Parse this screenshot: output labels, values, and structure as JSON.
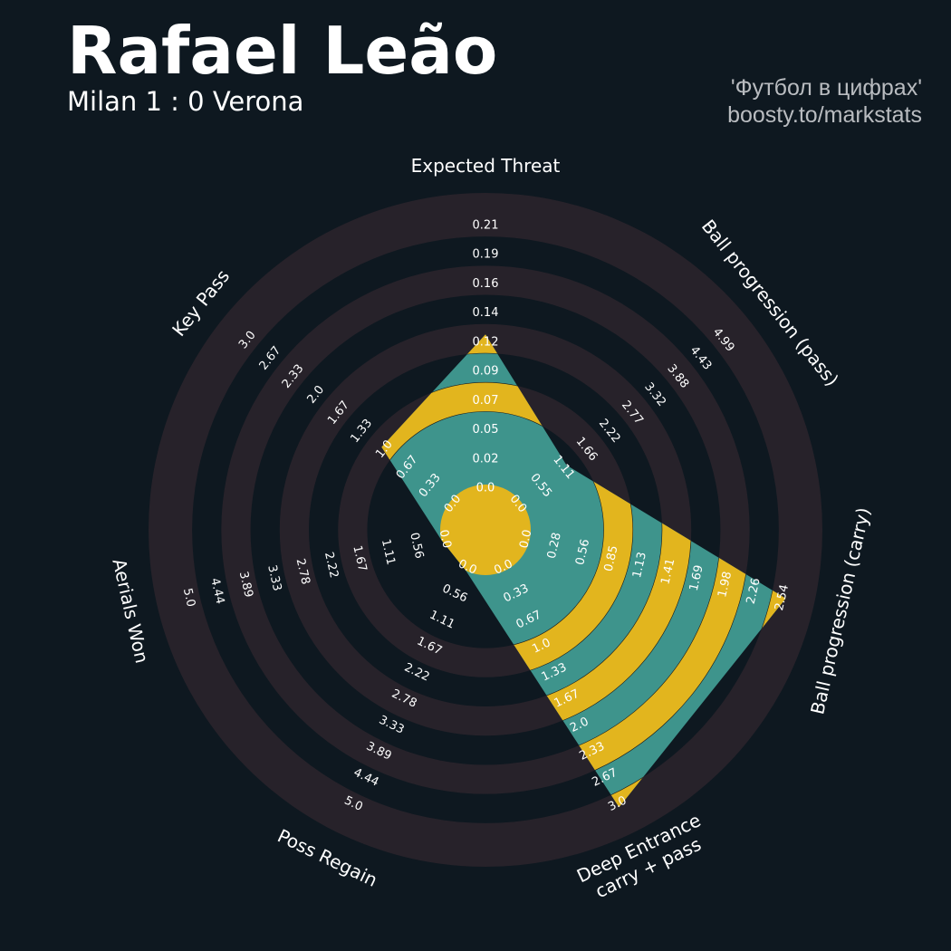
{
  "header": {
    "title": "Rafael Leão",
    "subtitle": "Milan 1 : 0 Verona",
    "credit_line1": "'Футбол в цифрах'",
    "credit_line2": "boosty.to/markstats"
  },
  "colors": {
    "background": "#0e1820",
    "ring_band": "#27222a",
    "fill_teal": "#3e948c",
    "fill_yellow": "#e2b51e",
    "text": "#ffffff",
    "credit_text": "#b9bcc0"
  },
  "chart_data": {
    "type": "radar",
    "title": "Rafael Leão",
    "grid": true,
    "params": [
      {
        "label": "Expected Threat",
        "value": 0.12,
        "min": 0.0,
        "max": 0.21,
        "ticks": [
          "0.0",
          "0.02",
          "0.05",
          "0.07",
          "0.09",
          "0.12",
          "0.14",
          "0.16",
          "0.19",
          "0.21"
        ]
      },
      {
        "label": "Ball progression (pass)",
        "value": 1.11,
        "min": 0.0,
        "max": 4.99,
        "ticks": [
          "0.0",
          "0.55",
          "1.11",
          "1.66",
          "2.22",
          "2.77",
          "3.32",
          "3.88",
          "4.43",
          "4.99"
        ]
      },
      {
        "label": "Ball progression (carry)",
        "value": 2.54,
        "min": 0.0,
        "max": 2.54,
        "ticks": [
          "0.0",
          "0.28",
          "0.56",
          "0.85",
          "1.13",
          "1.41",
          "1.69",
          "1.98",
          "2.26",
          "2.54"
        ]
      },
      {
        "label": "Deep Entrance\ncarry + pass",
        "value": 3.0,
        "min": 0.0,
        "max": 3.0,
        "ticks": [
          "0.0",
          "0.33",
          "0.67",
          "1.0",
          "1.33",
          "1.67",
          "2.0",
          "2.33",
          "2.67",
          "3.0"
        ]
      },
      {
        "label": "Poss Regain",
        "value": 0.0,
        "min": 0.0,
        "max": 5.0,
        "ticks": [
          "0.0",
          "0.56",
          "1.11",
          "1.67",
          "2.22",
          "2.78",
          "3.33",
          "3.89",
          "4.44",
          "5.0"
        ]
      },
      {
        "label": "Aerials Won",
        "value": 0.0,
        "min": 0.0,
        "max": 5.0,
        "ticks": [
          "0.0",
          "0.56",
          "1.11",
          "1.67",
          "2.22",
          "2.78",
          "3.33",
          "3.89",
          "4.44",
          "5.0"
        ]
      },
      {
        "label": "Key Pass",
        "value": 1.0,
        "min": 0.0,
        "max": 3.0,
        "ticks": [
          "0.0",
          "0.33",
          "0.67",
          "1.0",
          "1.33",
          "1.67",
          "2.0",
          "2.33",
          "2.67",
          "3.0"
        ]
      }
    ]
  }
}
